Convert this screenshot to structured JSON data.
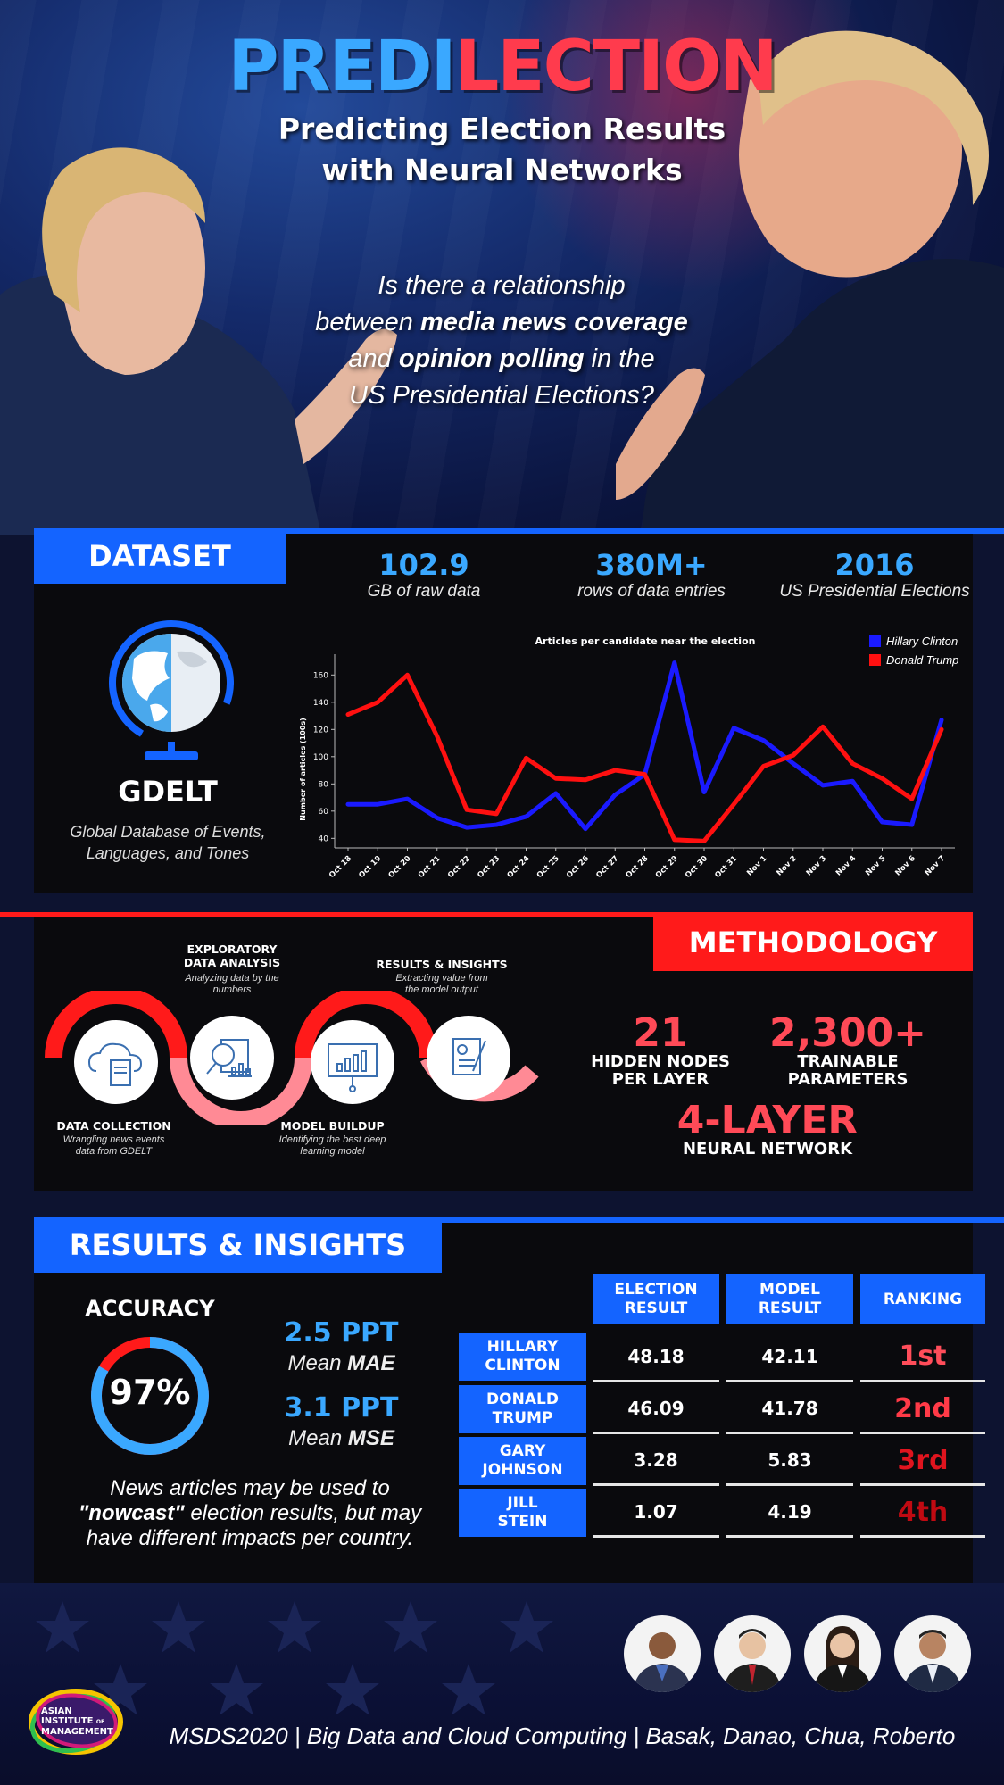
{
  "hero": {
    "title_part1": "PREDI",
    "title_part2": "LECTION",
    "subtitle_line1": "Predicting Election Results",
    "subtitle_line2": "with Neural Networks",
    "question": {
      "l1": "Is there a relationship",
      "l2a": "between ",
      "l2b": "media news coverage",
      "l3a": "and ",
      "l3b": "opinion polling",
      "l3c": " in the",
      "l4": "US Presidential Elections?"
    }
  },
  "dataset": {
    "heading": "DATASET",
    "stats": [
      {
        "value": "102.9",
        "label": "GB of  raw data"
      },
      {
        "value": "380M+",
        "label": "rows of data entries"
      },
      {
        "value": "2016",
        "label": "US Presidential Elections"
      }
    ],
    "source_name": "GDELT",
    "source_desc_l1": "Global Database of Events,",
    "source_desc_l2": "Languages, and Tones",
    "icon": "globe-icon"
  },
  "chart_data": {
    "type": "line",
    "title": "Articles per candidate near the election",
    "xlabel": "",
    "ylabel": "Number of articles (100s)",
    "x": [
      "Oct 18",
      "Oct 19",
      "Oct 20",
      "Oct 21",
      "Oct 22",
      "Oct 23",
      "Oct 24",
      "Oct 25",
      "Oct 26",
      "Oct 27",
      "Oct 28",
      "Oct 29",
      "Oct 30",
      "Oct 31",
      "Nov 1",
      "Nov 2",
      "Nov 3",
      "Nov 4",
      "Nov 5",
      "Nov 6",
      "Nov 7"
    ],
    "ylim": [
      33,
      172
    ],
    "yticks": [
      40,
      60,
      80,
      100,
      120,
      140,
      160
    ],
    "legend_position": "top-right",
    "grid": false,
    "series": [
      {
        "name": "Hillary Clinton",
        "color": "#1a1aff",
        "values": [
          65,
          65,
          69,
          55,
          48,
          50,
          56,
          73,
          47,
          72,
          87,
          169,
          74,
          121,
          112,
          95,
          79,
          82,
          52,
          50,
          127
        ]
      },
      {
        "name": "Donald Trump",
        "color": "#ff1010",
        "values": [
          131,
          140,
          160,
          115,
          61,
          58,
          99,
          84,
          83,
          90,
          87,
          39,
          38,
          65,
          93,
          101,
          122,
          95,
          84,
          69,
          120
        ]
      }
    ]
  },
  "methodology": {
    "heading": "METHODOLOGY",
    "steps": [
      {
        "title_l1": "DATA COLLECTION",
        "title_l2": "",
        "desc_l1": "Wrangling news events",
        "desc_l2": "data from GDELT",
        "icon": "cloud-document-icon"
      },
      {
        "title_l1": "EXPLORATORY",
        "title_l2": "DATA ANALYSIS",
        "desc_l1": "Analyzing data by the",
        "desc_l2": "numbers",
        "icon": "magnifier-chart-icon"
      },
      {
        "title_l1": "MODEL BUILDUP",
        "title_l2": "",
        "desc_l1": "Identifying the best deep",
        "desc_l2": "learning model",
        "icon": "presentation-board-icon"
      },
      {
        "title_l1": "RESULTS & INSIGHTS",
        "title_l2": "",
        "desc_l1": "Extracting value from",
        "desc_l2": "the model output",
        "icon": "report-pen-icon"
      }
    ],
    "stats": [
      {
        "value": "21",
        "label_l1": "HIDDEN NODES",
        "label_l2": "PER LAYER"
      },
      {
        "value": "2,300+",
        "label_l1": "TRAINABLE",
        "label_l2": "PARAMETERS"
      },
      {
        "value": "4-LAYER",
        "label_l1": "NEURAL NETWORK",
        "label_l2": ""
      }
    ]
  },
  "results": {
    "heading": "RESULTS & INSIGHTS",
    "accuracy_title": "ACCURACY",
    "accuracy_value": "97%",
    "accuracy_fraction": 0.97,
    "metrics": [
      {
        "value": "2.5 PPT",
        "label_a": "Mean ",
        "label_b": "MAE"
      },
      {
        "value": "3.1 PPT",
        "label_a": "Mean ",
        "label_b": "MSE"
      }
    ],
    "insight": {
      "l1": "News articles may be used to",
      "l2a": "\"nowcast\"",
      "l2b": " election results, but may",
      "l3": "have different impacts per country."
    },
    "table": {
      "headers": [
        {
          "l1": "ELECTION",
          "l2": "RESULT"
        },
        {
          "l1": "MODEL",
          "l2": "RESULT"
        },
        {
          "l1": "RANKING",
          "l2": ""
        }
      ],
      "rows": [
        {
          "name_l1": "HILLARY",
          "name_l2": "CLINTON",
          "election": "48.18",
          "model": "42.11",
          "rank": "1st",
          "rank_color": "#ff4d5a"
        },
        {
          "name_l1": "DONALD",
          "name_l2": "TRUMP",
          "election": "46.09",
          "model": "41.78",
          "rank": "2nd",
          "rank_color": "#ff3a47"
        },
        {
          "name_l1": "GARY",
          "name_l2": "JOHNSON",
          "election": "3.28",
          "model": "5.83",
          "rank": "3rd",
          "rank_color": "#e0141e"
        },
        {
          "name_l1": "JILL",
          "name_l2": "STEIN",
          "election": "1.07",
          "model": "4.19",
          "rank": "4th",
          "rank_color": "#c00a12"
        }
      ]
    }
  },
  "footer": {
    "logo_l1": "ASIAN",
    "logo_l2": "INSTITUTE",
    "logo_l2b": "OF",
    "logo_l3": "MANAGEMENT",
    "credits": "MSDS2020  |  Big Data and Cloud Computing  |  Basak, Danao, Chua, Roberto"
  },
  "colors": {
    "blue": "#1464ff",
    "light_blue": "#3aa8ff",
    "red": "#ff1a1a",
    "pink": "#ff8a95"
  }
}
